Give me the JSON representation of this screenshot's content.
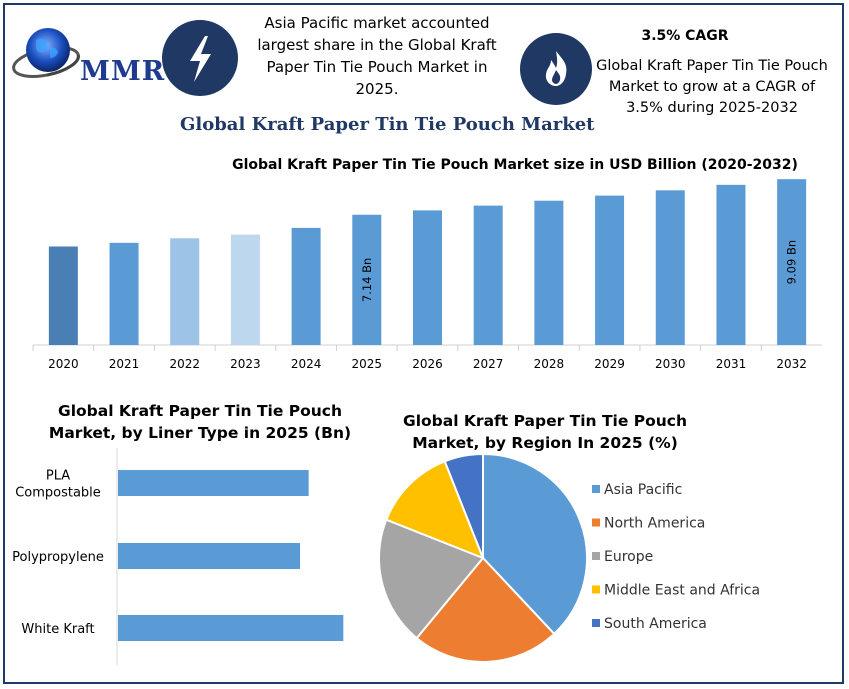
{
  "logo": {
    "text": "MMR"
  },
  "header": {
    "info_left": "Asia Pacific market accounted largest share in the Global Kraft Paper Tin Tie Pouch Market in 2025.",
    "info_left_lines": [
      "Asia Pacific market accounted",
      "largest share in the Global Kraft",
      "Paper Tin Tie Pouch Market in",
      "2025."
    ],
    "cagr_title": "3.5% CAGR",
    "cagr_lines": [
      "Global Kraft Paper Tin Tie Pouch",
      "Market to grow at a CAGR of",
      "3.5% during 2025-2032"
    ],
    "main_title": "Global Kraft Paper Tin Tie Pouch Market"
  },
  "icons": {
    "left": "lightning-bolt-icon",
    "right": "flame-icon"
  },
  "colors": {
    "navy": "#1f3864",
    "bar_blue": "#5b9bd5",
    "bar_dark": "#4a7fb5",
    "bar_light": "#9dc3e6",
    "bar_lighter": "#bdd7ee"
  },
  "chart_data": [
    {
      "type": "bar",
      "title": "Global Kraft Paper Tin Tie Pouch Market size in USD Billion (2020-2032)",
      "categories": [
        "2020",
        "2021",
        "2022",
        "2023",
        "2024",
        "2025",
        "2026",
        "2027",
        "2028",
        "2029",
        "2030",
        "2031",
        "2032"
      ],
      "values": [
        5.4,
        5.6,
        5.85,
        6.05,
        6.42,
        7.14,
        7.38,
        7.64,
        7.91,
        8.19,
        8.48,
        8.78,
        9.09
      ],
      "bar_colors": [
        "#4a7fb5",
        "#5b9bd5",
        "#9dc3e6",
        "#bdd7ee",
        "#5b9bd5",
        "#5b9bd5",
        "#5b9bd5",
        "#5b9bd5",
        "#5b9bd5",
        "#5b9bd5",
        "#5b9bd5",
        "#5b9bd5",
        "#5b9bd5"
      ],
      "data_labels": [
        {
          "category": "2025",
          "text": "7.14 Bn"
        },
        {
          "category": "2032",
          "text": "9.09 Bn"
        }
      ],
      "ylim": [
        0,
        9.1
      ]
    },
    {
      "type": "bar",
      "orientation": "horizontal",
      "title": "Global Kraft Paper Tin Tie Pouch Market, by Liner Type in 2025 (Bn)",
      "title_lines": [
        "Global Kraft Paper Tin Tie Pouch",
        "Market, by Liner Type in 2025 (Bn)"
      ],
      "categories": [
        "PLA Compostable",
        "Polypropylene",
        "White Kraft"
      ],
      "category_lines": [
        [
          "PLA",
          "Compostable"
        ],
        [
          "Polypropylene"
        ],
        [
          "White Kraft"
        ]
      ],
      "values": [
        2.2,
        2.1,
        2.6
      ],
      "xlim": [
        0,
        3
      ]
    },
    {
      "type": "pie",
      "title": "Global Kraft Paper Tin Tie Pouch Market, by Region In 2025 (%)",
      "title_lines": [
        "Global Kraft Paper Tin Tie Pouch",
        "Market, by Region In 2025 (%)"
      ],
      "labels": [
        "Asia Pacific",
        "North America",
        "Europe",
        "Middle East and Africa",
        "South America"
      ],
      "values": [
        38,
        23,
        20,
        13,
        6
      ],
      "colors": [
        "#5b9bd5",
        "#ed7d31",
        "#a5a5a5",
        "#ffc000",
        "#4472c4"
      ],
      "legend": "right"
    }
  ]
}
